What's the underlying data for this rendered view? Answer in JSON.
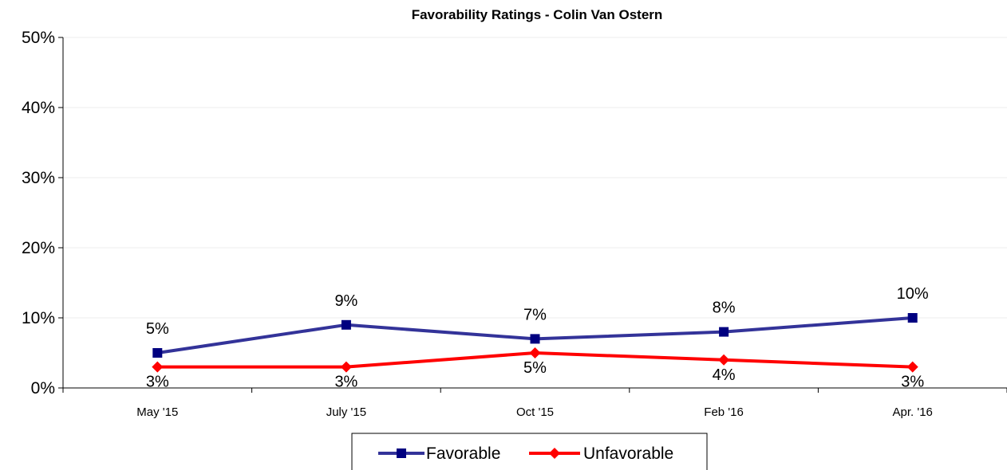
{
  "chart_data": {
    "type": "line",
    "title": "Favorability Ratings - Colin Van Ostern",
    "categories": [
      "May '15",
      "July '15",
      "Oct '15",
      "Feb '16",
      "Apr. '16"
    ],
    "ylim": [
      0,
      50
    ],
    "y_ticks": [
      0,
      10,
      20,
      30,
      40,
      50
    ],
    "y_tick_labels": [
      "0%",
      "10%",
      "20%",
      "30%",
      "40%",
      "50%"
    ],
    "grid": true,
    "legend_position": "bottom",
    "series": [
      {
        "name": "Favorable",
        "values": [
          5,
          9,
          7,
          8,
          10
        ],
        "labels": [
          "5%",
          "9%",
          "7%",
          "8%",
          "10%"
        ],
        "color": "#333399",
        "marker": "square",
        "marker_color": "#000080"
      },
      {
        "name": "Unfavorable",
        "values": [
          3,
          3,
          5,
          4,
          3
        ],
        "labels": [
          "3%",
          "3%",
          "5%",
          "4%",
          "3%"
        ],
        "color": "#ff0000",
        "marker": "diamond",
        "marker_color": "#ff0000"
      }
    ]
  }
}
